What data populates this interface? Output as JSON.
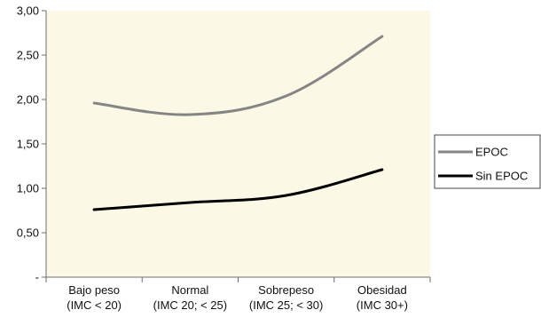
{
  "chart_data": {
    "type": "line",
    "title": "",
    "xlabel": "",
    "ylabel": "",
    "categories": [
      [
        "Bajo peso",
        "(IMC < 20)"
      ],
      [
        "Normal",
        "(IMC 20; < 25)"
      ],
      [
        "Sobrepeso",
        "(IMC 25; < 30)"
      ],
      [
        "Obesidad",
        "(IMC 30+)"
      ]
    ],
    "y_ticks": [
      {
        "value": 0,
        "label": "-"
      },
      {
        "value": 0.5,
        "label": "0,50"
      },
      {
        "value": 1.0,
        "label": "1,00"
      },
      {
        "value": 1.5,
        "label": "1,50"
      },
      {
        "value": 2.0,
        "label": "2,00"
      },
      {
        "value": 2.5,
        "label": "2,50"
      },
      {
        "value": 3.0,
        "label": "3,00"
      }
    ],
    "ylim": [
      0,
      3
    ],
    "grid": false,
    "plot_background": "#fcf8e6",
    "legend_position": "right",
    "series": [
      {
        "name": "EPOC",
        "color": "#858585",
        "values": [
          1.96,
          1.83,
          2.04,
          2.71
        ]
      },
      {
        "name": "Sin EPOC",
        "color": "#000000",
        "values": [
          0.76,
          0.84,
          0.92,
          1.21
        ]
      }
    ]
  }
}
